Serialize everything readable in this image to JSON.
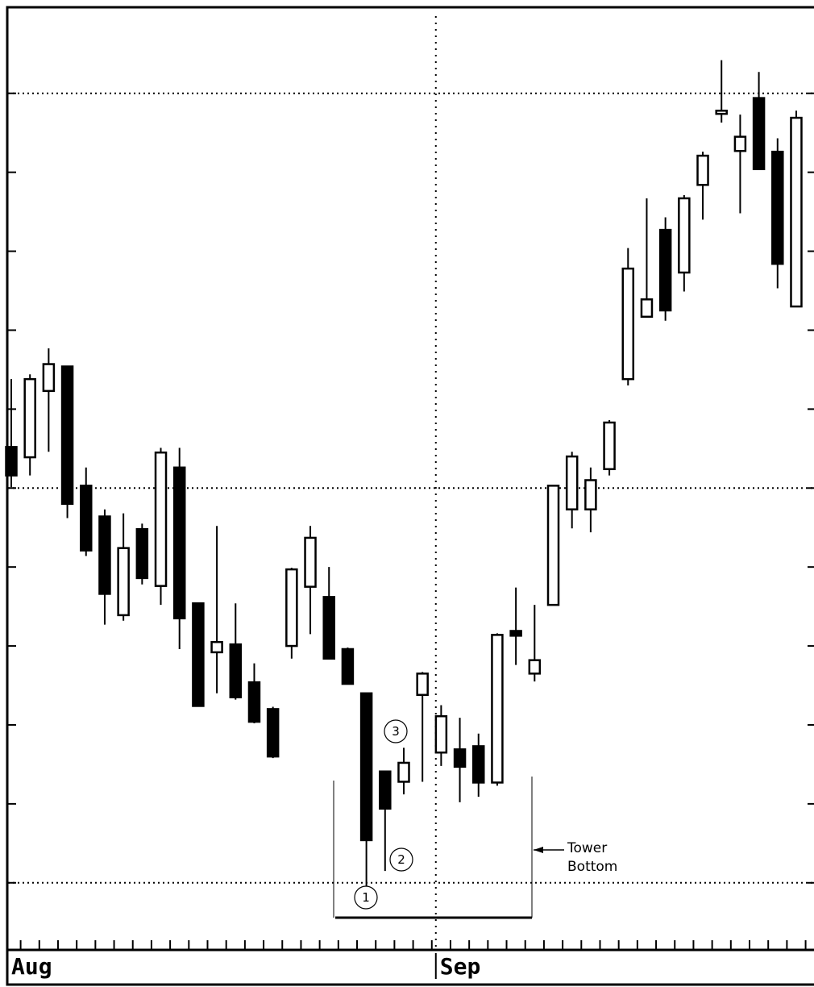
{
  "chart_data": {
    "type": "candlestick",
    "categories": [
      "Aug",
      null,
      null,
      null,
      null,
      null,
      null,
      null,
      null,
      null,
      null,
      null,
      null,
      null,
      null,
      null,
      null,
      null,
      null,
      null,
      null,
      null,
      null,
      "Sep",
      null,
      null,
      null,
      null,
      null,
      null,
      null,
      null,
      null,
      null,
      null,
      null,
      null,
      null,
      null,
      null,
      null,
      null,
      null
    ],
    "open": [
      5.52,
      5.39,
      6.23,
      6.54,
      5.03,
      4.64,
      3.39,
      4.48,
      3.76,
      5.26,
      3.54,
      2.92,
      3.02,
      2.54,
      2.2,
      3.0,
      3.75,
      3.62,
      2.96,
      2.4,
      1.41,
      1.28,
      2.38,
      1.65,
      1.69,
      1.73,
      1.27,
      3.19,
      2.65,
      3.52,
      4.73,
      4.73,
      5.24,
      6.38,
      7.17,
      8.27,
      7.73,
      8.84,
      9.74,
      9.27,
      9.94,
      9.26,
      7.3
    ],
    "high": [
      6.38,
      6.44,
      6.77,
      6.54,
      5.26,
      4.73,
      4.68,
      4.55,
      5.51,
      5.51,
      3.54,
      4.52,
      3.54,
      2.78,
      2.23,
      3.99,
      4.52,
      4.0,
      2.98,
      2.4,
      1.41,
      1.71,
      2.67,
      2.25,
      2.09,
      1.89,
      3.16,
      3.74,
      3.52,
      5.03,
      5.46,
      5.26,
      5.86,
      8.04,
      8.67,
      8.43,
      8.71,
      9.26,
      10.42,
      9.73,
      10.27,
      9.43,
      9.78
    ],
    "low": [
      5.01,
      5.16,
      5.46,
      4.62,
      4.14,
      3.27,
      3.32,
      3.78,
      3.52,
      2.96,
      2.24,
      2.4,
      2.32,
      2.02,
      1.58,
      2.84,
      3.15,
      2.84,
      2.52,
      -0.05,
      0.15,
      1.12,
      1.28,
      1.48,
      1.02,
      1.09,
      1.23,
      2.76,
      2.55,
      3.52,
      4.49,
      4.44,
      5.16,
      6.3,
      7.17,
      7.12,
      7.49,
      8.4,
      9.63,
      8.48,
      9.04,
      7.53,
      7.3
    ],
    "close": [
      5.16,
      6.38,
      6.57,
      4.8,
      4.21,
      3.66,
      4.24,
      3.86,
      5.45,
      3.35,
      2.24,
      3.05,
      2.35,
      2.04,
      1.6,
      3.97,
      4.37,
      2.84,
      2.52,
      0.54,
      0.94,
      1.52,
      2.65,
      2.11,
      1.47,
      1.27,
      3.14,
      3.13,
      2.82,
      5.03,
      5.4,
      5.1,
      5.83,
      7.78,
      7.39,
      7.25,
      8.67,
      9.21,
      9.78,
      9.45,
      9.04,
      7.84,
      9.69
    ],
    "ylim": [
      -0.85,
      11.08
    ],
    "yticks": [
      0,
      1,
      2,
      3,
      4,
      5,
      6,
      7,
      8,
      9,
      10
    ],
    "ygrid": [
      0,
      5,
      10
    ],
    "up_color": "#ffffff",
    "down_color": "#000000",
    "markers": [
      "1",
      "2",
      "3"
    ],
    "annotation": "Tower Bottom"
  }
}
